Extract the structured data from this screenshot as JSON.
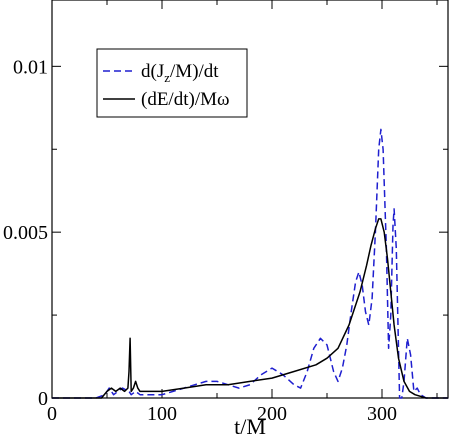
{
  "chart_data": {
    "type": "line",
    "xlabel": "t/M",
    "ylabel": "",
    "xlim": [
      0,
      360
    ],
    "ylim": [
      0,
      0.012
    ],
    "x_ticks": [
      0,
      100,
      200,
      300
    ],
    "y_ticks": [
      0,
      0.005,
      0.01
    ],
    "x_tick_labels": [
      "0",
      "100",
      "200",
      "300"
    ],
    "y_tick_labels": [
      "0",
      "0.005",
      "0.01"
    ],
    "grid": false,
    "legend_position": "top-left",
    "series": [
      {
        "name_parts": [
          "d(J",
          "z",
          "/M)/dt"
        ],
        "color": "#1f1fcf",
        "style": "dashed",
        "points": [
          [
            0,
            0
          ],
          [
            40,
            0
          ],
          [
            48,
            0.0001
          ],
          [
            52,
            0.0003
          ],
          [
            56,
            0.0001
          ],
          [
            60,
            0.0002
          ],
          [
            64,
            0.0003
          ],
          [
            70,
            0.0002
          ],
          [
            72,
            0.0001
          ],
          [
            76,
            0.0002
          ],
          [
            80,
            0.0001
          ],
          [
            90,
            0.0001
          ],
          [
            100,
            0.0001
          ],
          [
            110,
            0.0002
          ],
          [
            120,
            0.0003
          ],
          [
            130,
            0.0004
          ],
          [
            140,
            0.0005
          ],
          [
            150,
            0.0005
          ],
          [
            160,
            0.0004
          ],
          [
            170,
            0.0003
          ],
          [
            180,
            0.0004
          ],
          [
            190,
            0.0007
          ],
          [
            200,
            0.0009
          ],
          [
            210,
            0.0007
          ],
          [
            220,
            0.0004
          ],
          [
            226,
            0.0003
          ],
          [
            232,
            0.0008
          ],
          [
            238,
            0.0015
          ],
          [
            244,
            0.0018
          ],
          [
            250,
            0.0016
          ],
          [
            256,
            0.0008
          ],
          [
            260,
            0.0005
          ],
          [
            264,
            0.0009
          ],
          [
            268,
            0.0016
          ],
          [
            272,
            0.0026
          ],
          [
            276,
            0.0035
          ],
          [
            279,
            0.0038
          ],
          [
            282,
            0.0034
          ],
          [
            285,
            0.0026
          ],
          [
            288,
            0.0022
          ],
          [
            291,
            0.003
          ],
          [
            294,
            0.005
          ],
          [
            297,
            0.0075
          ],
          [
            299,
            0.0081
          ],
          [
            301,
            0.0075
          ],
          [
            304,
            0.0045
          ],
          [
            306,
            0.0015
          ],
          [
            308,
            0.0025
          ],
          [
            310,
            0.0052
          ],
          [
            311,
            0.0057
          ],
          [
            313,
            0.0045
          ],
          [
            315,
            0.0015
          ],
          [
            316,
            0.0
          ],
          [
            318,
            0.0
          ],
          [
            320,
            0.0005
          ],
          [
            323,
            0.0018
          ],
          [
            326,
            0.0013
          ],
          [
            329,
            0.0002
          ],
          [
            332,
            0.0003
          ],
          [
            335,
            0.0001
          ],
          [
            340,
            0.0
          ],
          [
            350,
            0.0
          ],
          [
            360,
            0.0
          ]
        ]
      },
      {
        "name": "(dE/dt)/Mω",
        "color": "#000000",
        "style": "solid",
        "points": [
          [
            0,
            0
          ],
          [
            45,
            0
          ],
          [
            50,
            0.0002
          ],
          [
            54,
            0.0003
          ],
          [
            58,
            0.0002
          ],
          [
            62,
            0.0003
          ],
          [
            66,
            0.0002
          ],
          [
            69,
            0.0003
          ],
          [
            70,
            0.0008
          ],
          [
            71,
            0.0018
          ],
          [
            72,
            0.0002
          ],
          [
            74,
            0.0003
          ],
          [
            76,
            0.0005
          ],
          [
            78,
            0.0003
          ],
          [
            80,
            0.0002
          ],
          [
            90,
            0.0002
          ],
          [
            100,
            0.0002
          ],
          [
            120,
            0.0003
          ],
          [
            140,
            0.0004
          ],
          [
            160,
            0.0004
          ],
          [
            180,
            0.0005
          ],
          [
            200,
            0.0006
          ],
          [
            220,
            0.0008
          ],
          [
            240,
            0.001
          ],
          [
            250,
            0.0012
          ],
          [
            260,
            0.0015
          ],
          [
            270,
            0.0022
          ],
          [
            280,
            0.0032
          ],
          [
            286,
            0.004
          ],
          [
            290,
            0.0046
          ],
          [
            294,
            0.0051
          ],
          [
            297,
            0.0054
          ],
          [
            299,
            0.0054
          ],
          [
            302,
            0.005
          ],
          [
            305,
            0.0042
          ],
          [
            308,
            0.0032
          ],
          [
            311,
            0.0022
          ],
          [
            315,
            0.0012
          ],
          [
            320,
            0.0005
          ],
          [
            325,
            0.0002
          ],
          [
            330,
            0.0001
          ],
          [
            340,
            0.0
          ],
          [
            350,
            0.0
          ],
          [
            360,
            0.0
          ]
        ]
      }
    ]
  }
}
